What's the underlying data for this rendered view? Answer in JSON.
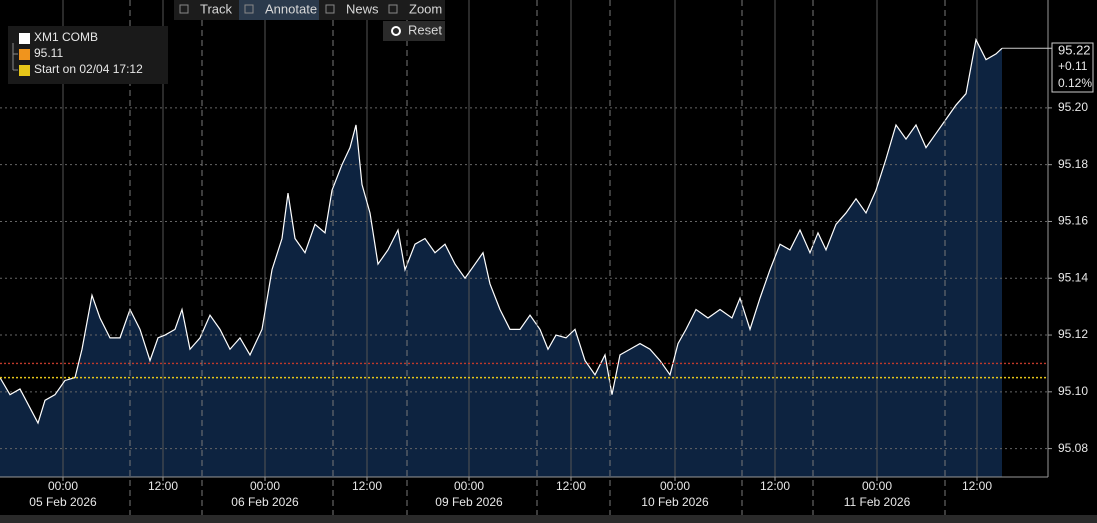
{
  "chart_data": {
    "type": "area",
    "toolbar": [
      "Track",
      "Annotate",
      "News",
      "Zoom"
    ],
    "reset": "Reset",
    "legend": [
      {
        "label": "XM1 COMB",
        "color": "#ffffff"
      },
      {
        "label": "95.11",
        "color": "#f0941d"
      },
      {
        "label": "Start on 02/04 17:12",
        "color": "#e6c619"
      }
    ],
    "last_label": {
      "price": "95.22",
      "change": "+0.11",
      "change_pct": "0.12%"
    },
    "series": [
      {
        "name": "XM1 COMB",
        "color": "#ffffff",
        "fill": "#0d2340",
        "x": [
          0,
          10,
          20,
          38,
          45,
          55,
          65,
          75,
          82,
          92,
          100,
          110,
          120,
          130,
          140,
          150,
          158,
          165,
          175,
          182,
          190,
          200,
          210,
          220,
          230,
          240,
          250,
          262,
          272,
          282,
          288,
          295,
          305,
          315,
          325,
          332,
          342,
          350,
          356,
          362,
          370,
          378,
          388,
          398,
          405,
          415,
          425,
          435,
          445,
          455,
          465,
          475,
          483,
          490,
          500,
          510,
          520,
          530,
          540,
          548,
          556,
          566,
          575,
          585,
          595,
          605,
          612,
          620,
          630,
          640,
          650,
          660,
          670,
          678,
          686,
          696,
          708,
          720,
          732,
          740,
          750,
          760,
          770,
          780,
          790,
          800,
          810,
          818,
          826,
          836,
          846,
          856,
          866,
          876,
          886,
          896,
          906,
          916,
          926,
          936,
          946,
          956,
          966,
          976,
          986,
          996,
          1002
        ],
        "values": [
          95.105,
          95.099,
          95.101,
          95.089,
          95.097,
          95.099,
          95.104,
          95.105,
          95.115,
          95.134,
          95.126,
          95.119,
          95.119,
          95.129,
          95.122,
          95.111,
          95.119,
          95.12,
          95.122,
          95.129,
          95.115,
          95.119,
          95.127,
          95.122,
          95.115,
          95.119,
          95.113,
          95.122,
          95.143,
          95.154,
          95.17,
          95.154,
          95.149,
          95.159,
          95.156,
          95.171,
          95.18,
          95.186,
          95.194,
          95.173,
          95.163,
          95.145,
          95.15,
          95.157,
          95.143,
          95.152,
          95.154,
          95.149,
          95.152,
          95.145,
          95.14,
          95.145,
          95.149,
          95.138,
          95.129,
          95.122,
          95.122,
          95.127,
          95.122,
          95.115,
          95.12,
          95.119,
          95.122,
          95.111,
          95.106,
          95.113,
          95.099,
          95.113,
          95.115,
          95.117,
          95.115,
          95.111,
          95.106,
          95.117,
          95.122,
          95.129,
          95.126,
          95.129,
          95.126,
          95.133,
          95.122,
          95.133,
          95.143,
          95.152,
          95.15,
          95.157,
          95.149,
          95.156,
          95.15,
          95.159,
          95.163,
          95.168,
          95.163,
          95.171,
          95.182,
          95.194,
          95.189,
          95.194,
          95.186,
          95.191,
          95.196,
          95.201,
          95.205,
          95.224,
          95.217,
          95.219,
          95.221
        ]
      }
    ],
    "ref_lines": [
      {
        "value": 95.11,
        "color": "#c0392b"
      },
      {
        "value": 95.105,
        "color": "#e6c619"
      }
    ],
    "xlim": [
      0,
      1048
    ],
    "xticks": [
      {
        "value": 63,
        "label": "00:00"
      },
      {
        "value": 163,
        "label": "12:00"
      },
      {
        "value": 265,
        "label": "00:00"
      },
      {
        "value": 367,
        "label": "12:00"
      },
      {
        "value": 469,
        "label": "00:00"
      },
      {
        "value": 571,
        "label": "12:00"
      },
      {
        "value": 675,
        "label": "00:00"
      },
      {
        "value": 775,
        "label": "12:00"
      },
      {
        "value": 877,
        "label": "00:00"
      },
      {
        "value": 977,
        "label": "12:00"
      }
    ],
    "date_labels": [
      {
        "value": 63,
        "label": "05 Feb 2026"
      },
      {
        "value": 265,
        "label": "06 Feb 2026"
      },
      {
        "value": 469,
        "label": "09 Feb 2026"
      },
      {
        "value": 675,
        "label": "10 Feb 2026"
      },
      {
        "value": 877,
        "label": "11 Feb 2026"
      }
    ],
    "ylim": [
      95.07,
      95.238
    ],
    "yticks": [
      95.08,
      {
        "value": 95.1,
        "label": "95.10"
      },
      95.12,
      95.14,
      95.16,
      95.18,
      {
        "value": 95.2,
        "label": "95.20"
      }
    ],
    "grid": true
  }
}
